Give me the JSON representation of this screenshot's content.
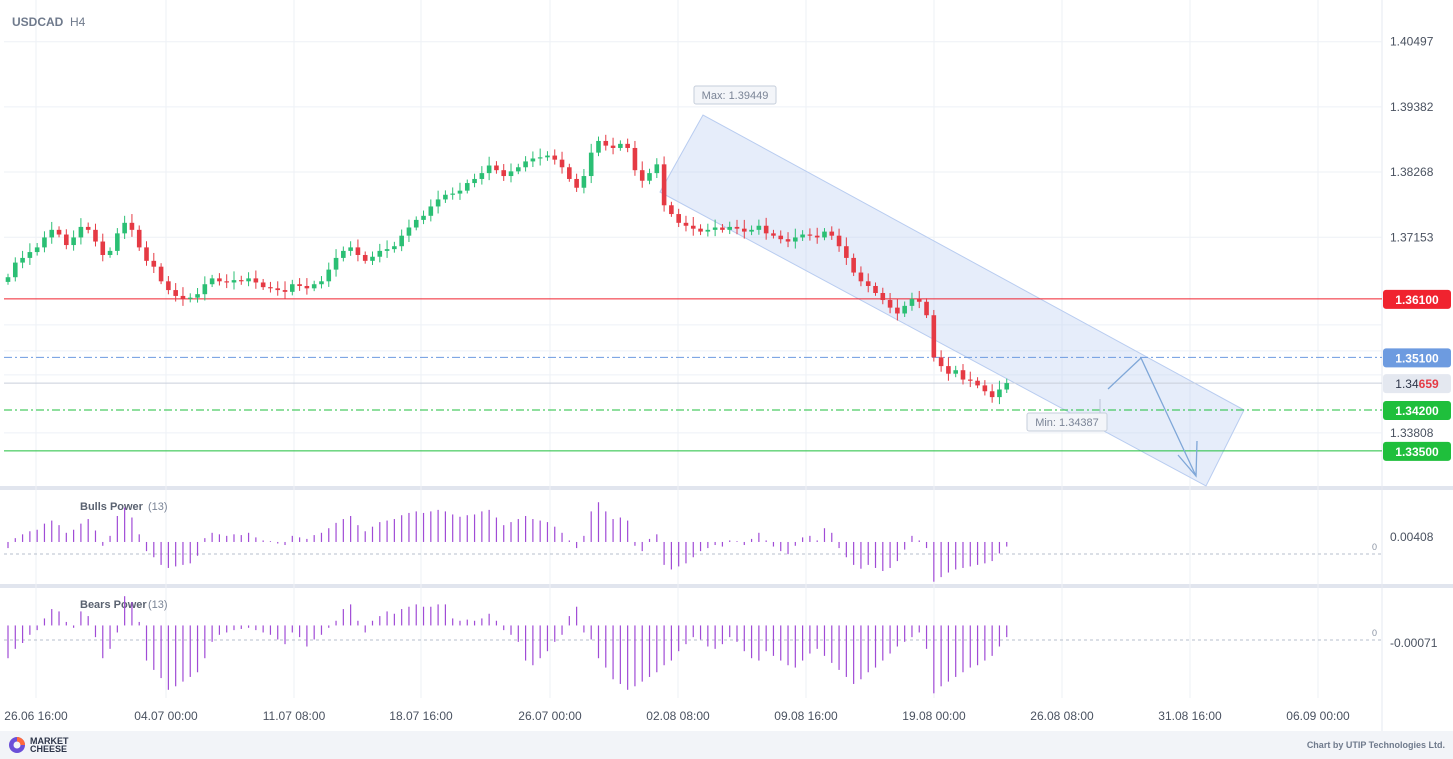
{
  "header": {
    "symbol": "USDCAD",
    "timeframe": "H4"
  },
  "chart_data": [
    {
      "type": "candlestick",
      "title": "USDCAD H4",
      "x_ticks": [
        "26.06 16:00",
        "04.07 00:00",
        "11.07 08:00",
        "18.07 16:00",
        "26.07 00:00",
        "02.08 08:00",
        "09.08 16:00",
        "19.08 00:00",
        "26.08 08:00",
        "31.08 16:00",
        "06.09 00:00"
      ],
      "y_ticks": [
        "1.40497",
        "1.39382",
        "1.38268",
        "1.37153",
        "1.33808"
      ],
      "ylim": [
        1.329,
        1.4121
      ],
      "max_label": "Max: 1.39449",
      "min_label": "Min: 1.34387",
      "current_price": 1.34659,
      "current_price_label": {
        "main": "1.34",
        "highlight": "659"
      },
      "levels": [
        {
          "value": 1.361,
          "label": "1.36100",
          "color": "#f0232f",
          "style": "solid"
        },
        {
          "value": 1.351,
          "label": "1.35100",
          "color": "#6d9be0",
          "style": "dashdot"
        },
        {
          "value": 1.342,
          "label": "1.34200",
          "color": "#1fbf3c",
          "style": "dashdot"
        },
        {
          "value": 1.335,
          "label": "1.33500",
          "color": "#1fbf3c",
          "style": "solid"
        }
      ],
      "channel_color": "#b8ccf0",
      "up_color": "#2bbf74",
      "down_color": "#e53a44",
      "forecast_color": "#7fa7d8",
      "closes": [
        1.3647,
        1.3672,
        1.368,
        1.369,
        1.3698,
        1.3715,
        1.3728,
        1.372,
        1.3702,
        1.3715,
        1.3733,
        1.3728,
        1.3708,
        1.3685,
        1.3692,
        1.3722,
        1.374,
        1.3728,
        1.3698,
        1.3675,
        1.3665,
        1.364,
        1.3625,
        1.3615,
        1.361,
        1.3612,
        1.3618,
        1.3635,
        1.3645,
        1.364,
        1.3638,
        1.3642,
        1.364,
        1.3645,
        1.3638,
        1.363,
        1.3628,
        1.3625,
        1.3622,
        1.3635,
        1.3632,
        1.3628,
        1.3635,
        1.364,
        1.366,
        1.368,
        1.3692,
        1.3698,
        1.3685,
        1.3675,
        1.3682,
        1.3692,
        1.3695,
        1.37,
        1.3718,
        1.3732,
        1.3745,
        1.3752,
        1.3768,
        1.378,
        1.3788,
        1.379,
        1.3795,
        1.3808,
        1.3815,
        1.3825,
        1.3838,
        1.383,
        1.382,
        1.3828,
        1.3835,
        1.3845,
        1.385,
        1.3852,
        1.3855,
        1.3848,
        1.3835,
        1.3815,
        1.38,
        1.382,
        1.386,
        1.388,
        1.3872,
        1.3868,
        1.3875,
        1.3868,
        1.383,
        1.3812,
        1.3825,
        1.384,
        1.377,
        1.3755,
        1.374,
        1.3735,
        1.373,
        1.3725,
        1.3728,
        1.3732,
        1.3728,
        1.3733,
        1.373,
        1.3725,
        1.3728,
        1.3735,
        1.3722,
        1.3718,
        1.3712,
        1.3708,
        1.3715,
        1.372,
        1.3718,
        1.3715,
        1.3725,
        1.3718,
        1.37,
        1.368,
        1.3655,
        1.364,
        1.3632,
        1.362,
        1.3608,
        1.3595,
        1.3585,
        1.3598,
        1.361,
        1.3605,
        1.3582,
        1.351,
        1.3495,
        1.3482,
        1.3488,
        1.3472,
        1.347,
        1.3462,
        1.3452,
        1.3442,
        1.3455,
        1.3466
      ]
    },
    {
      "type": "bar",
      "title": "Bulls Power",
      "period": "(13)",
      "tick_label": "0.00408",
      "zero_label": "0",
      "color": "#a04bd6",
      "ylim": [
        -0.0055,
        0.0068
      ],
      "values": [
        -0.0008,
        0.0005,
        0.001,
        0.0014,
        0.0016,
        0.0024,
        0.0028,
        0.0022,
        0.0012,
        0.0016,
        0.0024,
        0.003,
        0.0015,
        -0.0005,
        0.0008,
        0.0034,
        0.0045,
        0.0032,
        0.001,
        -0.0012,
        -0.002,
        -0.003,
        -0.0034,
        -0.0032,
        -0.003,
        -0.0028,
        -0.0018,
        0.0005,
        0.0012,
        0.001,
        0.0008,
        0.001,
        0.0009,
        0.0012,
        0.0006,
        0.0002,
        0.0001,
        -0.0002,
        -0.0004,
        0.0008,
        0.0006,
        0.0004,
        0.0009,
        0.0012,
        0.0018,
        0.0025,
        0.003,
        0.0034,
        0.0022,
        0.0014,
        0.002,
        0.0026,
        0.0028,
        0.003,
        0.0035,
        0.0038,
        0.004,
        0.0038,
        0.004,
        0.0042,
        0.004,
        0.0036,
        0.0033,
        0.0035,
        0.0036,
        0.004,
        0.0042,
        0.0032,
        0.0022,
        0.0026,
        0.003,
        0.0034,
        0.003,
        0.0028,
        0.0026,
        0.002,
        0.0012,
        0.0002,
        -0.0008,
        0.0008,
        0.004,
        0.0052,
        0.004,
        0.003,
        0.0032,
        0.0028,
        -0.0005,
        -0.0012,
        0.0004,
        0.001,
        -0.003,
        -0.0036,
        -0.0032,
        -0.0028,
        -0.002,
        -0.0012,
        -0.0008,
        -0.0004,
        -0.0006,
        0.0002,
        0.0001,
        -0.0004,
        0.0004,
        0.0012,
        0.0002,
        -0.0006,
        -0.0012,
        -0.0016,
        -0.0005,
        0.0006,
        0.0008,
        0.0002,
        0.0018,
        0.0012,
        -0.0008,
        -0.002,
        -0.003,
        -0.0035,
        -0.003,
        -0.0034,
        -0.0038,
        -0.0034,
        -0.0025,
        -0.001,
        0.0008,
        0.0002,
        -0.0008,
        -0.0052,
        -0.0046,
        -0.004,
        -0.0036,
        -0.0034,
        -0.0032,
        -0.003,
        -0.0028,
        -0.0025,
        -0.0015,
        -0.0006
      ]
    },
    {
      "type": "bar",
      "title": "Bears Power",
      "period": "(13)",
      "tick_label": "-0.00071",
      "zero_label": "0",
      "color": "#a04bd6",
      "ylim": [
        -0.0062,
        0.0032
      ],
      "values": [
        -0.0028,
        -0.002,
        -0.0015,
        -0.0008,
        -0.0004,
        0.0006,
        0.0014,
        0.0012,
        0.0003,
        -0.0002,
        0.0012,
        0.0008,
        -0.001,
        -0.0028,
        -0.002,
        -0.0006,
        0.0025,
        0.002,
        0.0003,
        -0.003,
        -0.0038,
        -0.0045,
        -0.0055,
        -0.0052,
        -0.0048,
        -0.0044,
        -0.004,
        -0.0028,
        -0.0014,
        -0.0008,
        -0.0006,
        -0.0004,
        -0.0003,
        -0.0002,
        -0.0004,
        -0.0006,
        -0.0008,
        -0.0012,
        -0.0016,
        -0.0006,
        -0.001,
        -0.0018,
        -0.0012,
        -0.0008,
        -0.0002,
        0.0004,
        0.0014,
        0.0018,
        0.0004,
        -0.0006,
        0.0004,
        0.0008,
        0.0012,
        0.001,
        0.0014,
        0.0016,
        0.0018,
        0.0016,
        0.0016,
        0.0018,
        0.0018,
        0.0006,
        0.0004,
        0.0005,
        0.0004,
        0.0006,
        0.001,
        0.0004,
        -0.0004,
        -0.0008,
        -0.0014,
        -0.003,
        -0.0034,
        -0.0028,
        -0.0022,
        -0.0014,
        -0.0008,
        0.0008,
        0.0016,
        -0.0006,
        -0.0012,
        -0.0028,
        -0.0036,
        -0.0046,
        -0.005,
        -0.0055,
        -0.0052,
        -0.0048,
        -0.0044,
        -0.004,
        -0.0034,
        -0.003,
        -0.0022,
        -0.0016,
        -0.001,
        -0.0012,
        -0.0018,
        -0.002,
        -0.0016,
        -0.001,
        -0.0014,
        -0.0022,
        -0.0028,
        -0.003,
        -0.0022,
        -0.0026,
        -0.003,
        -0.0034,
        -0.0036,
        -0.003,
        -0.0024,
        -0.002,
        -0.0026,
        -0.0032,
        -0.0038,
        -0.0044,
        -0.005,
        -0.0046,
        -0.004,
        -0.0036,
        -0.003,
        -0.0024,
        -0.0018,
        -0.0014,
        -0.001,
        -0.0006,
        -0.002,
        -0.0058,
        -0.0052,
        -0.0048,
        -0.0044,
        -0.004,
        -0.0036,
        -0.0034,
        -0.003,
        -0.0026,
        -0.0018,
        -0.001
      ]
    }
  ],
  "footer": {
    "brand_line1": "MARKET",
    "brand_line2": "CHEESE",
    "credit": "Chart by UTIP Technologies Ltd."
  }
}
